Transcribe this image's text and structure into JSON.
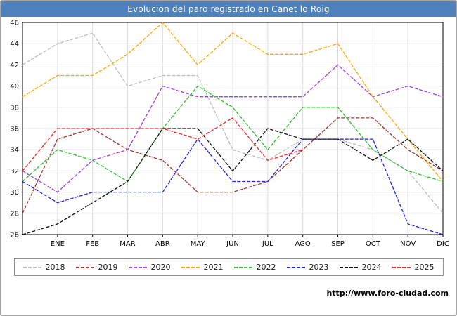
{
  "title": "Evolucion del paro registrado en Canet lo Roig",
  "watermark": "http://www.foro-ciudad.com",
  "colors": {
    "title_bar": "#4f81bd",
    "title_text": "#ffffff",
    "grid": "#dcdcdc",
    "axis": "#000000"
  },
  "chart_data": {
    "type": "line",
    "title": "Evolucion del paro registrado en Canet lo Roig",
    "categories": [
      "ENE",
      "FEB",
      "MAR",
      "ABR",
      "MAY",
      "JUN",
      "JUL",
      "AGO",
      "SEP",
      "OCT",
      "NOV",
      "DIC"
    ],
    "ylim": [
      26,
      46
    ],
    "ytick_step": 2,
    "grid": true,
    "legend_position": "bottom",
    "series": [
      {
        "name": "2018",
        "color": "#bdbdbd",
        "left_edge_value": 42,
        "values": [
          44,
          45,
          40,
          41,
          41,
          34,
          33,
          35,
          35,
          34,
          32,
          28
        ]
      },
      {
        "name": "2019",
        "color": "#a03232",
        "left_edge_value": 28,
        "values": [
          35,
          36,
          34,
          33,
          30,
          30,
          31,
          34,
          37,
          37,
          34,
          32
        ]
      },
      {
        "name": "2020",
        "color": "#a040e0",
        "left_edge_value": 32,
        "values": [
          30,
          33,
          34,
          40,
          39,
          39,
          39,
          39,
          42,
          39,
          40,
          39
        ]
      },
      {
        "name": "2021",
        "color": "#ffa500",
        "left_edge_value": 39,
        "values": [
          41,
          41,
          43,
          46,
          42,
          45,
          43,
          43,
          44,
          39,
          35,
          31
        ]
      },
      {
        "name": "2022",
        "color": "#33bb33",
        "left_edge_value": 31,
        "values": [
          34,
          33,
          31,
          36,
          40,
          38,
          34,
          38,
          38,
          34,
          32,
          31
        ]
      },
      {
        "name": "2023",
        "color": "#2222dd",
        "left_edge_value": 31,
        "values": [
          29,
          30,
          30,
          30,
          35,
          31,
          31,
          35,
          35,
          35,
          27,
          26
        ]
      },
      {
        "name": "2024",
        "color": "#111111",
        "left_edge_value": 26,
        "values": [
          27,
          29,
          31,
          36,
          36,
          32,
          36,
          35,
          35,
          33,
          35,
          32
        ]
      },
      {
        "name": "2025",
        "color": "#ee2c2c",
        "left_edge_value": 32,
        "values": [
          36,
          36,
          36,
          36,
          35,
          37,
          33,
          34
        ]
      }
    ]
  }
}
